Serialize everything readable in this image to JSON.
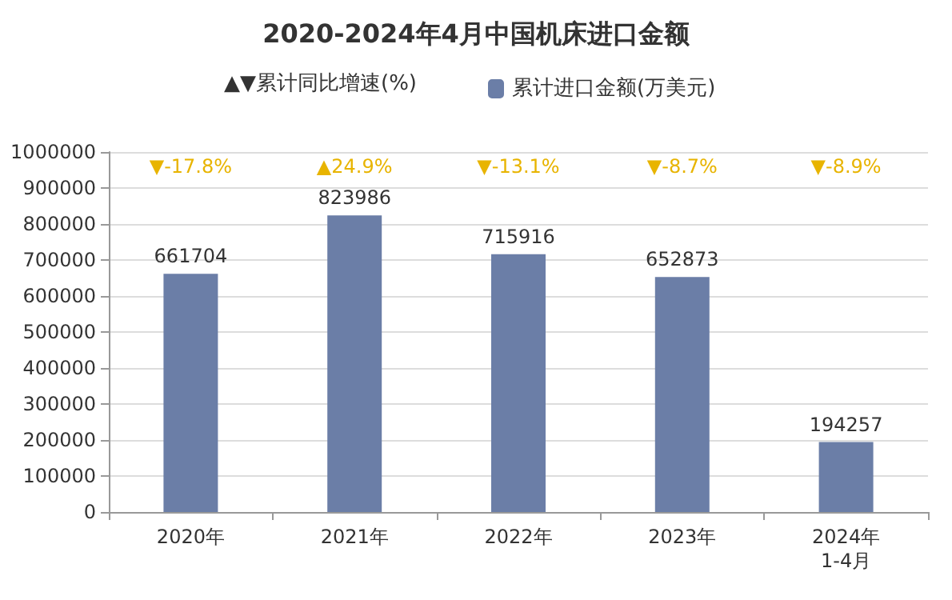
{
  "chart_data": {
    "type": "bar",
    "title": "2020-2024年4月中国机床进口金额",
    "categories": [
      "2020年",
      "2021年",
      "2022年",
      "2023年",
      "2024年\n1-4月"
    ],
    "series": [
      {
        "name": "累计进口金额(万美元)",
        "color": "#6b7ea7",
        "values": [
          661704,
          823986,
          715916,
          652873,
          194257
        ]
      }
    ],
    "ylim": [
      0,
      1000000
    ],
    "yticks": [
      0,
      100000,
      200000,
      300000,
      400000,
      500000,
      600000,
      700000,
      800000,
      900000,
      1000000
    ],
    "grid": "y",
    "legend": "top",
    "data_labels": true,
    "annotations": [
      "▲▼累计同比增速(%)",
      "▼-17.8%",
      "▲24.9%",
      "▼-13.1%",
      "▼-8.7%",
      "▼-8.9%"
    ]
  }
}
